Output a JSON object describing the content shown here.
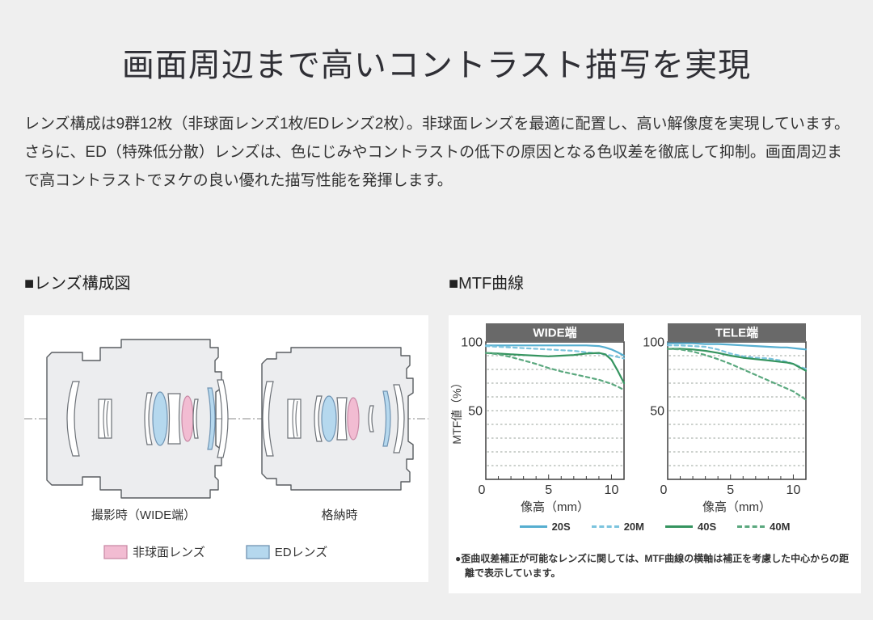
{
  "title": "画面周辺まで高いコントラスト描写を実現",
  "paragraphs": {
    "p1": "レンズ構成は9群12枚（非球面レンズ1枚/EDレンズ2枚）。非球面レンズを最適に配置し、高い解像度を実現しています。",
    "p2": "さらに、ED（特殊低分散）レンズは、色にじみやコントラストの低下の原因となる色収差を徹底して抑制。画面周辺まで高コントラストでヌケの良い優れた描写性能を発揮します。"
  },
  "sections": {
    "lens_diagram": "■レンズ構成図",
    "mtf": "■MTF曲線"
  },
  "lens_diagram": {
    "captions": {
      "shooting": "撮影時（WIDE端）",
      "retracted": "格納時"
    },
    "colors": {
      "aspherical": "#f2bcd2",
      "ed": "#b5d8ee"
    },
    "legend": {
      "aspherical_label": "非球面レンズ",
      "ed_label": "EDレンズ"
    }
  },
  "theme": {
    "page_bg": "#efefef",
    "panel": "#ffffff",
    "header_bar": "#696969",
    "frame": "#3f3f3f",
    "grid": "#9aa39b",
    "barrel_fill": "#ecedef",
    "barrel_stroke": "#595d61"
  },
  "chart_data": [
    {
      "type": "line",
      "title": "WIDE端",
      "xlabel": "像高（mm）",
      "ylabel": "MTF値（%）",
      "xlim": [
        0,
        11
      ],
      "ylim": [
        0,
        100
      ],
      "xticks": [
        0,
        5,
        10
      ],
      "yticks": [
        0,
        50,
        100
      ],
      "grid": "horizontal dashed lines every 10",
      "legend_position": "below",
      "x": [
        0,
        1,
        2,
        3,
        4,
        5,
        6,
        7,
        8,
        9,
        9.5,
        10,
        10.5,
        11
      ],
      "series": [
        {
          "name": "20S",
          "dash": false,
          "color": "#56aed0",
          "values": [
            97.5,
            97.5,
            97.5,
            97.5,
            97.5,
            97.5,
            97.5,
            97.5,
            97.5,
            97,
            96,
            94.5,
            92.5,
            90
          ]
        },
        {
          "name": "20M",
          "dash": true,
          "color": "#7cc4de",
          "values": [
            97,
            96.5,
            96,
            95.5,
            95,
            94.5,
            94,
            93.5,
            92.5,
            91.5,
            91,
            90,
            89,
            88
          ]
        },
        {
          "name": "40S",
          "dash": false,
          "color": "#35945f",
          "values": [
            92,
            91.5,
            91,
            90.5,
            90,
            89.5,
            90,
            90.5,
            91.5,
            92,
            91,
            87,
            79,
            70
          ]
        },
        {
          "name": "40M",
          "dash": true,
          "color": "#5aa87e",
          "values": [
            92,
            91,
            89,
            86.5,
            84,
            81,
            78.5,
            76.5,
            74.5,
            72.5,
            71,
            69.5,
            67.5,
            65
          ]
        }
      ]
    },
    {
      "type": "line",
      "title": "TELE端",
      "xlabel": "像高（mm）",
      "ylabel": "",
      "xlim": [
        0,
        11
      ],
      "ylim": [
        0,
        100
      ],
      "xticks": [
        0,
        5,
        10
      ],
      "yticks": [
        0,
        50,
        100
      ],
      "grid": "horizontal dashed lines every 10",
      "legend_position": "below",
      "x": [
        0,
        1,
        2,
        3,
        4,
        5,
        6,
        7,
        8,
        9,
        9.5,
        10,
        10.5,
        11
      ],
      "series": [
        {
          "name": "20S",
          "dash": false,
          "color": "#56aed0",
          "values": [
            99,
            99,
            99,
            98.5,
            98.5,
            98,
            97.5,
            97,
            96.5,
            96,
            96,
            95.5,
            95,
            94.5
          ]
        },
        {
          "name": "20M",
          "dash": true,
          "color": "#7cc4de",
          "values": [
            97.5,
            97.5,
            97,
            96.5,
            94.5,
            91.5,
            89.5,
            88.5,
            88,
            86.5,
            85.5,
            84,
            82,
            80.5
          ]
        },
        {
          "name": "40S",
          "dash": false,
          "color": "#35945f",
          "values": [
            95,
            95,
            94.5,
            93.5,
            92,
            90,
            88.5,
            87.5,
            86.5,
            85.5,
            85,
            84,
            81.5,
            79
          ]
        },
        {
          "name": "40M",
          "dash": true,
          "color": "#5aa87e",
          "values": [
            95,
            94.5,
            93,
            90.5,
            87.5,
            84,
            80,
            76,
            72,
            68,
            66,
            64,
            61,
            58
          ]
        }
      ]
    }
  ],
  "mtf_legend": [
    {
      "label": "20S",
      "color": "#56aed0",
      "dash": false
    },
    {
      "label": "20M",
      "color": "#7cc4de",
      "dash": true
    },
    {
      "label": "40S",
      "color": "#35945f",
      "dash": false
    },
    {
      "label": "40M",
      "color": "#5aa87e",
      "dash": true
    }
  ],
  "footnote": "●歪曲収差補正が可能なレンズに関しては、MTF曲線の横軸は補正を考慮した中心からの距離で表示しています。"
}
